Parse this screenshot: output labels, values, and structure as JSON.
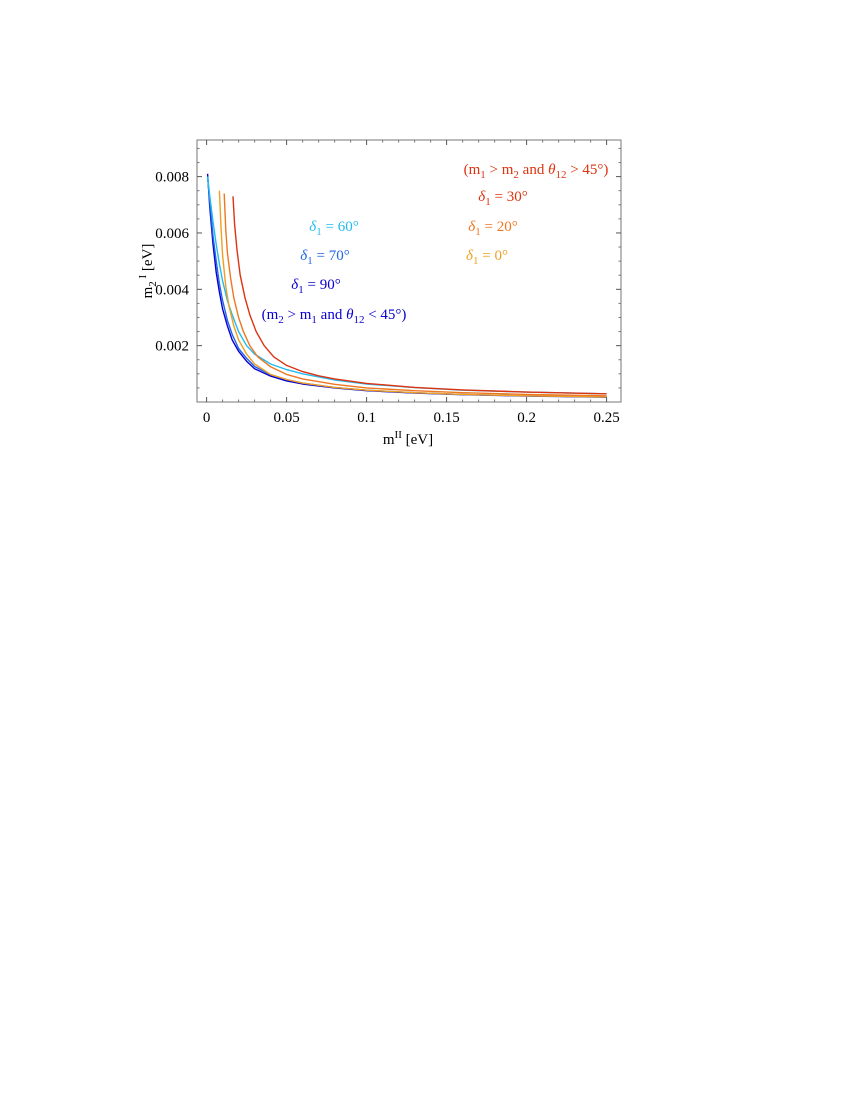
{
  "chart_data": {
    "type": "line",
    "title": "",
    "xlabel": "m",
    "xlabel_sup": "II",
    "xlabel_unit": "[eV]",
    "ylabel": "m",
    "ylabel_sub": "2",
    "ylabel_sup": "I",
    "ylabel_unit": "[eV]",
    "xlim": [
      -0.006,
      0.259
    ],
    "ylim": [
      0,
      0.0093
    ],
    "xticks": [
      0,
      0.05,
      0.1,
      0.15,
      0.2,
      0.25
    ],
    "xtick_labels": [
      "0",
      "0.05",
      "0.1",
      "0.15",
      "0.2",
      "0.25"
    ],
    "yticks": [
      0.002,
      0.004,
      0.006,
      0.008
    ],
    "ytick_labels": [
      "0.002",
      "0.004",
      "0.006",
      "0.008"
    ],
    "grid": false,
    "series": [
      {
        "color": "#0a00d0",
        "points": [
          [
            0.0006,
            0.0081
          ],
          [
            0.002,
            0.0069
          ],
          [
            0.004,
            0.0056
          ],
          [
            0.006,
            0.0046
          ],
          [
            0.008,
            0.0039
          ],
          [
            0.01,
            0.0033
          ],
          [
            0.013,
            0.0027
          ],
          [
            0.016,
            0.0022
          ],
          [
            0.02,
            0.0018
          ],
          [
            0.025,
            0.00145
          ],
          [
            0.03,
            0.00118
          ],
          [
            0.04,
            0.00092
          ],
          [
            0.05,
            0.00075
          ],
          [
            0.06,
            0.00064
          ],
          [
            0.08,
            0.0005
          ],
          [
            0.1,
            0.0004
          ],
          [
            0.13,
            0.00032
          ],
          [
            0.16,
            0.00026
          ],
          [
            0.2,
            0.00021
          ],
          [
            0.25,
            0.00017
          ]
        ]
      },
      {
        "color": "#2266e6",
        "points": [
          [
            0.0006,
            0.008
          ],
          [
            0.002,
            0.0071
          ],
          [
            0.004,
            0.0059
          ],
          [
            0.006,
            0.005
          ],
          [
            0.008,
            0.0042
          ],
          [
            0.01,
            0.0036
          ],
          [
            0.013,
            0.0029
          ],
          [
            0.016,
            0.0024
          ],
          [
            0.02,
            0.0019
          ],
          [
            0.025,
            0.00155
          ],
          [
            0.03,
            0.00126
          ],
          [
            0.04,
            0.00097
          ],
          [
            0.05,
            0.0008
          ],
          [
            0.06,
            0.00067
          ],
          [
            0.08,
            0.00052
          ],
          [
            0.1,
            0.00042
          ],
          [
            0.13,
            0.00033
          ],
          [
            0.16,
            0.00027
          ],
          [
            0.2,
            0.00022
          ],
          [
            0.25,
            0.00018
          ]
        ]
      },
      {
        "color": "#22bbee",
        "points": [
          [
            0.0006,
            0.008
          ],
          [
            0.002,
            0.0073
          ],
          [
            0.004,
            0.0064
          ],
          [
            0.006,
            0.0056
          ],
          [
            0.008,
            0.0049
          ],
          [
            0.01,
            0.0043
          ],
          [
            0.013,
            0.0036
          ],
          [
            0.016,
            0.0031
          ],
          [
            0.02,
            0.0025
          ],
          [
            0.025,
            0.002
          ],
          [
            0.03,
            0.0017
          ],
          [
            0.04,
            0.00135
          ],
          [
            0.05,
            0.00115
          ],
          [
            0.06,
            0.001
          ],
          [
            0.08,
            0.00078
          ],
          [
            0.1,
            0.00064
          ],
          [
            0.13,
            0.00051
          ],
          [
            0.16,
            0.00042
          ],
          [
            0.2,
            0.00035
          ],
          [
            0.25,
            0.00029
          ]
        ]
      },
      {
        "color": "#f0a020",
        "points": [
          [
            0.008,
            0.0075
          ],
          [
            0.009,
            0.0062
          ],
          [
            0.01,
            0.0052
          ],
          [
            0.012,
            0.0041
          ],
          [
            0.014,
            0.0034
          ],
          [
            0.017,
            0.0027
          ],
          [
            0.02,
            0.0022
          ],
          [
            0.025,
            0.0017
          ],
          [
            0.03,
            0.00135
          ],
          [
            0.04,
            0.00098
          ],
          [
            0.05,
            0.0008
          ],
          [
            0.06,
            0.00067
          ],
          [
            0.08,
            0.00052
          ],
          [
            0.1,
            0.00042
          ],
          [
            0.13,
            0.00033
          ],
          [
            0.16,
            0.00027
          ],
          [
            0.2,
            0.00022
          ],
          [
            0.25,
            0.00018
          ]
        ]
      },
      {
        "color": "#ee7722",
        "points": [
          [
            0.011,
            0.0074
          ],
          [
            0.012,
            0.0061
          ],
          [
            0.013,
            0.0053
          ],
          [
            0.015,
            0.0044
          ],
          [
            0.017,
            0.0037
          ],
          [
            0.02,
            0.003
          ],
          [
            0.023,
            0.0025
          ],
          [
            0.027,
            0.002
          ],
          [
            0.032,
            0.0016
          ],
          [
            0.04,
            0.00125
          ],
          [
            0.05,
            0.00098
          ],
          [
            0.06,
            0.00082
          ],
          [
            0.08,
            0.00063
          ],
          [
            0.1,
            0.0005
          ],
          [
            0.13,
            0.0004
          ],
          [
            0.16,
            0.00033
          ],
          [
            0.2,
            0.00027
          ],
          [
            0.25,
            0.00022
          ]
        ]
      },
      {
        "color": "#dd3311",
        "points": [
          [
            0.0165,
            0.0073
          ],
          [
            0.0175,
            0.0063
          ],
          [
            0.019,
            0.0054
          ],
          [
            0.021,
            0.0045
          ],
          [
            0.024,
            0.0037
          ],
          [
            0.027,
            0.0031
          ],
          [
            0.031,
            0.0025
          ],
          [
            0.036,
            0.002
          ],
          [
            0.042,
            0.0016
          ],
          [
            0.05,
            0.0013
          ],
          [
            0.06,
            0.00108
          ],
          [
            0.07,
            0.00093
          ],
          [
            0.08,
            0.00082
          ],
          [
            0.1,
            0.00066
          ],
          [
            0.13,
            0.00052
          ],
          [
            0.16,
            0.00043
          ],
          [
            0.2,
            0.00035
          ],
          [
            0.25,
            0.00029
          ]
        ]
      }
    ],
    "annotations": [
      {
        "parts": [
          [
            "(m",
            "n"
          ],
          [
            "1",
            "sub"
          ],
          [
            " > m",
            "n"
          ],
          [
            "2",
            "sub"
          ],
          [
            " and ",
            "n"
          ],
          [
            "θ",
            "i"
          ],
          [
            "12",
            "sub"
          ],
          [
            " > 45°)",
            "n"
          ]
        ],
        "color": "#dd3311"
      },
      {
        "parts": [
          [
            "δ",
            "i"
          ],
          [
            "1",
            "sub"
          ],
          [
            " = 30°",
            "n"
          ]
        ],
        "color": "#dd3311"
      },
      {
        "parts": [
          [
            "δ",
            "i"
          ],
          [
            "1",
            "sub"
          ],
          [
            " = 20°",
            "n"
          ]
        ],
        "color": "#ee7722"
      },
      {
        "parts": [
          [
            "δ",
            "i"
          ],
          [
            "1",
            "sub"
          ],
          [
            " = 0°",
            "n"
          ]
        ],
        "color": "#f0a020"
      },
      {
        "parts": [
          [
            "δ",
            "i"
          ],
          [
            "1",
            "sub"
          ],
          [
            " = 60°",
            "n"
          ]
        ],
        "color": "#22bbee"
      },
      {
        "parts": [
          [
            "δ",
            "i"
          ],
          [
            "1",
            "sub"
          ],
          [
            " = 70°",
            "n"
          ]
        ],
        "color": "#2266e6"
      },
      {
        "parts": [
          [
            "δ",
            "i"
          ],
          [
            "1",
            "sub"
          ],
          [
            " = 90°",
            "n"
          ]
        ],
        "color": "#0a00d0"
      },
      {
        "parts": [
          [
            "(m",
            "n"
          ],
          [
            "2",
            "sub"
          ],
          [
            " > m",
            "n"
          ],
          [
            "1",
            "sub"
          ],
          [
            " and ",
            "n"
          ],
          [
            "θ",
            "i"
          ],
          [
            "12",
            "sub"
          ],
          [
            " < 45°)",
            "n"
          ]
        ],
        "color": "#0a00d0"
      }
    ]
  }
}
